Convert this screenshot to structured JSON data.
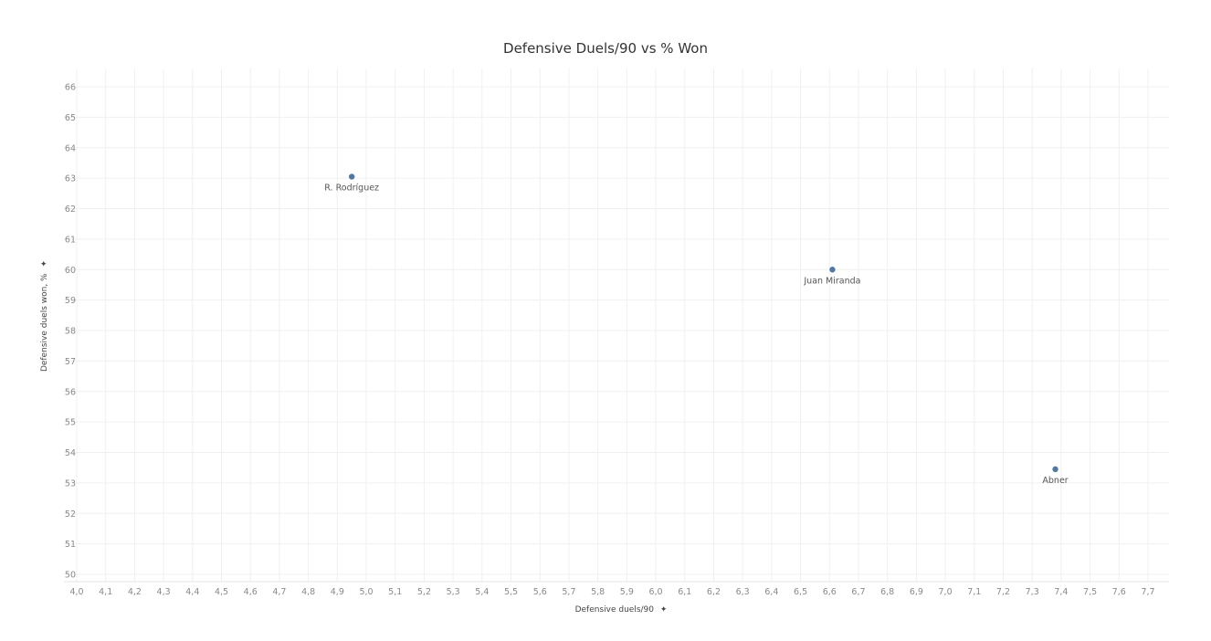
{
  "chart_data": {
    "type": "scatter",
    "title": "Defensive Duels/90 vs % Won",
    "xlabel": "Defensive duels/90",
    "ylabel": "Defensive duels won, %",
    "label_marker": "✦",
    "xlim": [
      4.0,
      7.7
    ],
    "ylim": [
      50,
      66
    ],
    "x_ticks": [
      "4,0",
      "4,1",
      "4,2",
      "4,3",
      "4,4",
      "4,5",
      "4,6",
      "4,7",
      "4,8",
      "4,9",
      "5,0",
      "5,1",
      "5,2",
      "5,3",
      "5,4",
      "5,5",
      "5,6",
      "5,7",
      "5,8",
      "5,9",
      "6,0",
      "6,1",
      "6,2",
      "6,3",
      "6,4",
      "6,5",
      "6,6",
      "6,7",
      "6,8",
      "6,9",
      "7,0",
      "7,1",
      "7,2",
      "7,3",
      "7,4",
      "7,5",
      "7,6",
      "7,7"
    ],
    "y_ticks": [
      "50",
      "51",
      "52",
      "53",
      "54",
      "55",
      "56",
      "57",
      "58",
      "59",
      "60",
      "61",
      "62",
      "63",
      "64",
      "65",
      "66"
    ],
    "points": [
      {
        "label": "R. Rodríguez",
        "x": 4.95,
        "y": 63.05
      },
      {
        "label": "Juan Miranda",
        "x": 6.61,
        "y": 60.0
      },
      {
        "label": "Abner",
        "x": 7.38,
        "y": 53.45
      }
    ],
    "point_color": "#4e79a7",
    "grid": true
  }
}
